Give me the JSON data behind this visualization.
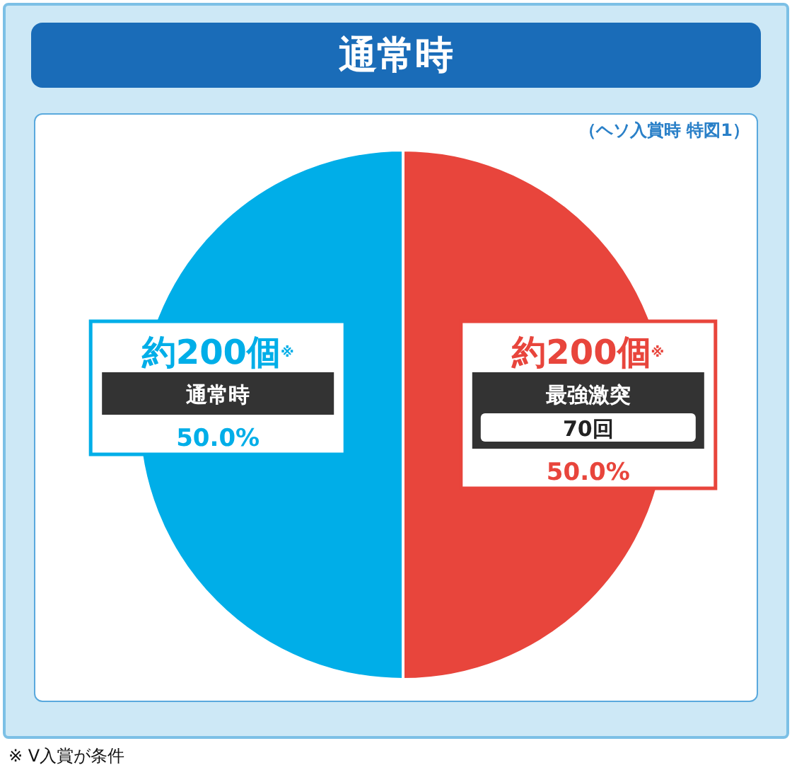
{
  "chart_data": {
    "type": "pie",
    "title": "通常時",
    "subtitle": "（ヘソ入賞時 特図1）",
    "categories": [
      "通常時",
      "最強激突"
    ],
    "values": [
      50,
      50
    ],
    "colors": [
      "#00aee8",
      "#e8453c"
    ],
    "value_labels": [
      "50.0%",
      "50.0%"
    ],
    "annotations": [
      {
        "text": "約200個$^{※}$",
        "x": "通常時"
      },
      {
        "text": "約200個$^{※}$",
        "x": "最強激突"
      },
      {
        "text": "70回",
        "x": "最強激突"
      },
      "※ V入賞が条件"
    ]
  }
}
